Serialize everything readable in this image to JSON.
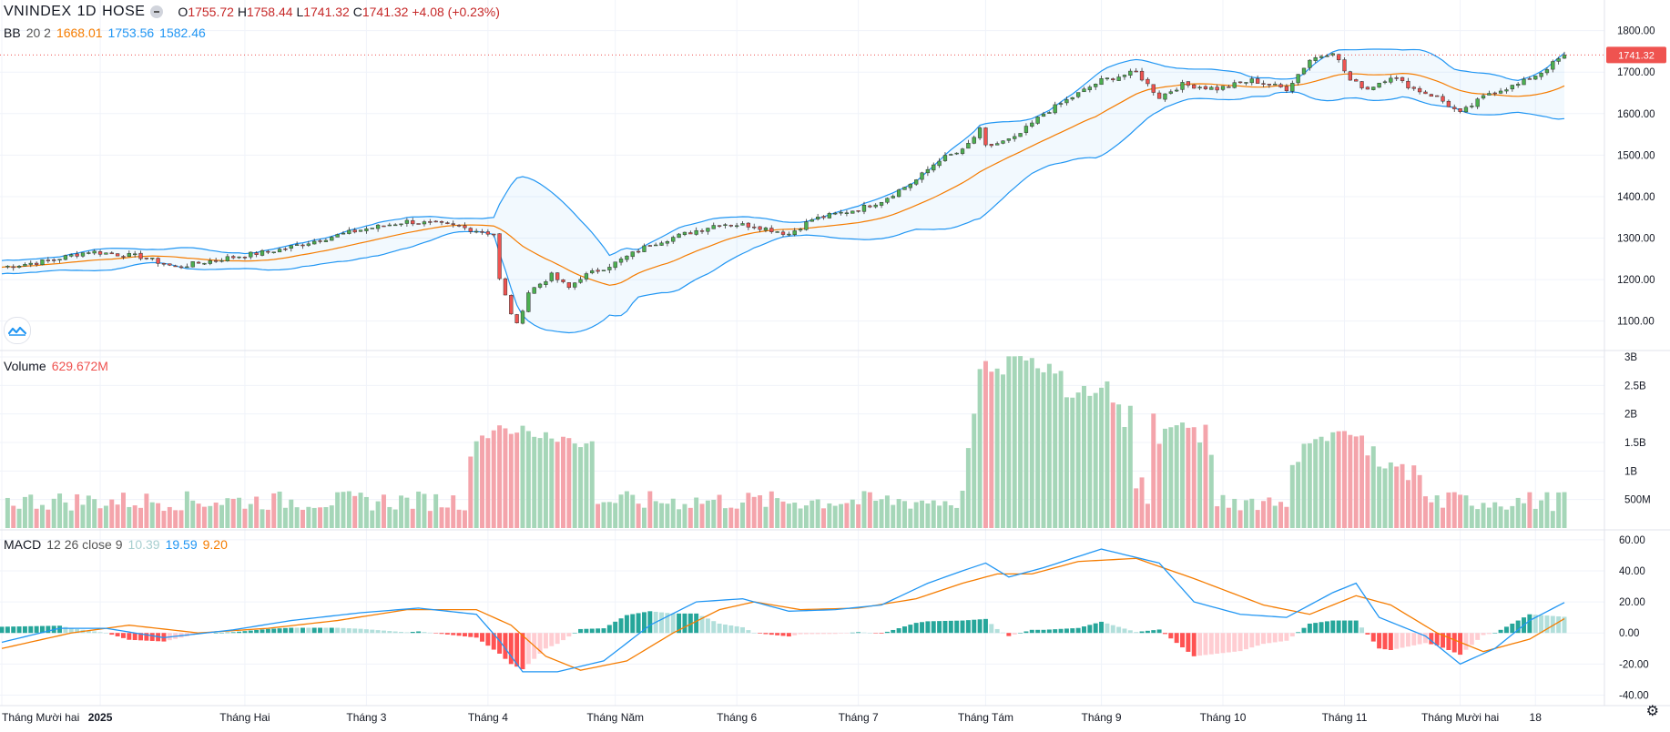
{
  "header": {
    "symbol": "VNINDEX",
    "interval": "1D",
    "exchange": "HOSE",
    "open_label": "O",
    "open": "1755.72",
    "high_label": "H",
    "high": "1758.44",
    "low_label": "L",
    "low": "1741.32",
    "close_label": "C",
    "close": "1741.32",
    "change": "+4.08 (+0.23%)"
  },
  "bb_legend": {
    "name": "BB",
    "params": "20 2",
    "basis": "1668.01",
    "upper": "1753.56",
    "lower": "1582.46"
  },
  "volume_legend": {
    "name": "Volume",
    "value": "629.672M"
  },
  "macd_legend": {
    "name": "MACD",
    "params": "12 26 close 9",
    "hist": "10.39",
    "macd": "19.59",
    "signal": "9.20"
  },
  "colors": {
    "up": "#26a69a",
    "up_candle": "#4caf50",
    "down": "#ef5350",
    "vol_up": "#a5d6b8",
    "vol_down": "#f4a4ab",
    "bb_band": "#2196f3",
    "bb_basis": "#f57c00",
    "macd_line": "#2196f3",
    "signal_line": "#f57c00",
    "grid": "#f0f3fa"
  },
  "price_tag": "1741.32",
  "icons": {
    "logo": "wave-logo-icon",
    "settings": "gear-icon"
  },
  "chart_data": [
    {
      "type": "candlestick",
      "pane": "price",
      "ylim": [
        1040,
        1830
      ],
      "yticks": [
        "1800.00",
        "1700.00",
        "1600.00",
        "1500.00",
        "1400.00",
        "1300.00",
        "1200.00",
        "1100.00"
      ],
      "ytick_values": [
        1800,
        1700,
        1600,
        1500,
        1400,
        1300,
        1200,
        1100
      ],
      "xticks": [
        "Tháng Mười hai",
        "2025",
        "Tháng Hai",
        "Tháng 3",
        "Tháng 4",
        "Tháng Năm",
        "Tháng 6",
        "Tháng 7",
        "Tháng Tám",
        "Tháng 9",
        "Tháng 10",
        "Tháng 11",
        "Tháng Mười hai",
        "18"
      ],
      "xtick_index": [
        0,
        17,
        42,
        63,
        84,
        106,
        127,
        148,
        170,
        190,
        211,
        232,
        252,
        265
      ],
      "total_bars": 270,
      "close_anchors": [
        [
          0,
          1230
        ],
        [
          8,
          1245
        ],
        [
          15,
          1268
        ],
        [
          24,
          1255
        ],
        [
          30,
          1230
        ],
        [
          38,
          1250
        ],
        [
          48,
          1272
        ],
        [
          56,
          1300
        ],
        [
          62,
          1320
        ],
        [
          70,
          1340
        ],
        [
          78,
          1330
        ],
        [
          85,
          1310
        ],
        [
          86,
          1200
        ],
        [
          88,
          1120
        ],
        [
          89,
          1090
        ],
        [
          91,
          1170
        ],
        [
          95,
          1210
        ],
        [
          98,
          1180
        ],
        [
          100,
          1205
        ],
        [
          106,
          1240
        ],
        [
          112,
          1285
        ],
        [
          118,
          1310
        ],
        [
          124,
          1335
        ],
        [
          130,
          1330
        ],
        [
          136,
          1310
        ],
        [
          140,
          1345
        ],
        [
          148,
          1370
        ],
        [
          152,
          1390
        ],
        [
          158,
          1440
        ],
        [
          162,
          1490
        ],
        [
          166,
          1510
        ],
        [
          169,
          1560
        ],
        [
          170,
          1520
        ],
        [
          175,
          1540
        ],
        [
          180,
          1600
        ],
        [
          185,
          1640
        ],
        [
          190,
          1680
        ],
        [
          196,
          1700
        ],
        [
          200,
          1640
        ],
        [
          204,
          1670
        ],
        [
          210,
          1660
        ],
        [
          216,
          1680
        ],
        [
          222,
          1660
        ],
        [
          226,
          1730
        ],
        [
          230,
          1750
        ],
        [
          233,
          1680
        ],
        [
          236,
          1660
        ],
        [
          240,
          1690
        ],
        [
          244,
          1660
        ],
        [
          248,
          1640
        ],
        [
          252,
          1600
        ],
        [
          257,
          1650
        ],
        [
          262,
          1670
        ],
        [
          266,
          1700
        ],
        [
          270,
          1741.32
        ]
      ],
      "close": 1741.32
    },
    {
      "type": "line",
      "pane": "price",
      "name": "BB",
      "series": [
        "basis",
        "upper",
        "lower"
      ]
    },
    {
      "type": "bar",
      "pane": "volume",
      "ylim": [
        0,
        3000
      ],
      "yticks": [
        "3B",
        "2.5B",
        "2B",
        "1.5B",
        "1B",
        "500M"
      ],
      "ytick_values": [
        3000,
        2500,
        2000,
        1500,
        1000,
        500
      ],
      "unit": "M",
      "last_value": 629.672,
      "peaks": [
        [
          86,
          1800
        ],
        [
          88,
          1650
        ],
        [
          90,
          1400
        ],
        [
          91,
          1700
        ],
        [
          97,
          1600
        ],
        [
          172,
          1800
        ],
        [
          174,
          2800
        ],
        [
          178,
          2800
        ],
        [
          186,
          2350
        ],
        [
          188,
          2250
        ],
        [
          190,
          1900
        ],
        [
          204,
          1850
        ],
        [
          228,
          1600
        ],
        [
          232,
          1700
        ],
        [
          240,
          1150
        ]
      ]
    },
    {
      "type": "bar+line",
      "pane": "macd",
      "ylim": [
        -45,
        64
      ],
      "yticks": [
        "60.00",
        "40.00",
        "20.00",
        "0.00",
        "-20.00",
        "-40.00"
      ],
      "ytick_values": [
        60,
        40,
        20,
        0,
        -20,
        -40
      ],
      "macd_anchors": [
        [
          0,
          -6
        ],
        [
          10,
          3
        ],
        [
          18,
          3
        ],
        [
          28,
          -3
        ],
        [
          40,
          2
        ],
        [
          50,
          8
        ],
        [
          62,
          13
        ],
        [
          72,
          16
        ],
        [
          82,
          12
        ],
        [
          86,
          -5
        ],
        [
          90,
          -25
        ],
        [
          96,
          -25
        ],
        [
          104,
          -18
        ],
        [
          112,
          5
        ],
        [
          120,
          20
        ],
        [
          128,
          22
        ],
        [
          136,
          14
        ],
        [
          144,
          15
        ],
        [
          152,
          18
        ],
        [
          160,
          32
        ],
        [
          166,
          40
        ],
        [
          170,
          45
        ],
        [
          174,
          36
        ],
        [
          180,
          42
        ],
        [
          190,
          54
        ],
        [
          200,
          45
        ],
        [
          206,
          20
        ],
        [
          214,
          12
        ],
        [
          222,
          10
        ],
        [
          230,
          26
        ],
        [
          234,
          32
        ],
        [
          238,
          10
        ],
        [
          246,
          -2
        ],
        [
          252,
          -20
        ],
        [
          258,
          -10
        ],
        [
          264,
          8
        ],
        [
          270,
          19.59
        ]
      ],
      "signal_anchors": [
        [
          0,
          -10
        ],
        [
          12,
          0
        ],
        [
          22,
          5
        ],
        [
          34,
          0
        ],
        [
          46,
          3
        ],
        [
          58,
          8
        ],
        [
          70,
          15
        ],
        [
          82,
          15
        ],
        [
          88,
          5
        ],
        [
          94,
          -15
        ],
        [
          100,
          -24
        ],
        [
          108,
          -18
        ],
        [
          116,
          0
        ],
        [
          124,
          15
        ],
        [
          130,
          20
        ],
        [
          138,
          15
        ],
        [
          148,
          16
        ],
        [
          158,
          22
        ],
        [
          166,
          32
        ],
        [
          172,
          38
        ],
        [
          178,
          38
        ],
        [
          186,
          46
        ],
        [
          196,
          48
        ],
        [
          206,
          35
        ],
        [
          218,
          18
        ],
        [
          226,
          12
        ],
        [
          234,
          24
        ],
        [
          240,
          18
        ],
        [
          248,
          0
        ],
        [
          256,
          -12
        ],
        [
          264,
          -4
        ],
        [
          270,
          9.2
        ]
      ],
      "last_hist": 10.39
    }
  ]
}
